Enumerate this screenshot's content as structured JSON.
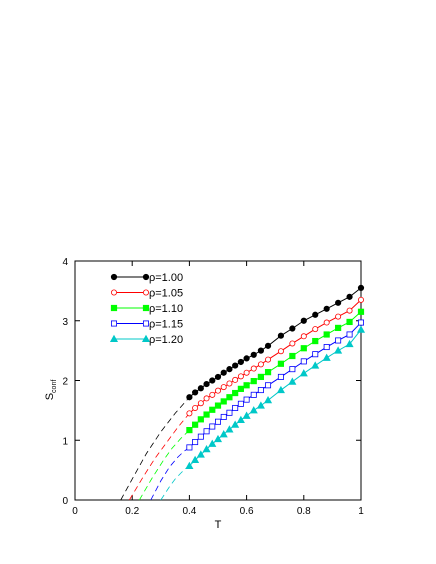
{
  "chart_data": {
    "type": "line",
    "xlabel": "T",
    "ylabel": "S",
    "ylabel_sub": "conf",
    "xlim": [
      0,
      1
    ],
    "ylim": [
      0,
      4
    ],
    "xticks": [
      0,
      0.2,
      0.4,
      0.6,
      0.8,
      1
    ],
    "yticks": [
      0,
      1,
      2,
      3,
      4
    ],
    "xtick_labels": [
      "0",
      "0.2",
      "0.4",
      "0.6",
      "0.8",
      "1"
    ],
    "ytick_labels": [
      "0",
      "1",
      "2",
      "3",
      "4"
    ],
    "grid": false,
    "legend_position": "top-left",
    "series": [
      {
        "name": "ρ=1.00",
        "color": "#000000",
        "marker": "filled-circle",
        "x": [
          0.4,
          0.42,
          0.44,
          0.46,
          0.48,
          0.5,
          0.52,
          0.54,
          0.56,
          0.58,
          0.6,
          0.625,
          0.65,
          0.675,
          0.72,
          0.76,
          0.8,
          0.84,
          0.88,
          0.92,
          0.96,
          1.0
        ],
        "y": [
          1.72,
          1.8,
          1.87,
          1.94,
          2.0,
          2.06,
          2.13,
          2.19,
          2.25,
          2.31,
          2.37,
          2.43,
          2.5,
          2.58,
          2.75,
          2.87,
          3.0,
          3.1,
          3.2,
          3.3,
          3.4,
          3.55
        ],
        "extrapolation": {
          "x": [
            0.16,
            0.2,
            0.25,
            0.3,
            0.35,
            0.4
          ],
          "y": [
            0,
            0.35,
            0.78,
            1.14,
            1.45,
            1.72
          ]
        }
      },
      {
        "name": "ρ=1.05",
        "color": "#ff0000",
        "marker": "open-circle",
        "x": [
          0.4,
          0.42,
          0.44,
          0.46,
          0.48,
          0.5,
          0.52,
          0.54,
          0.56,
          0.58,
          0.6,
          0.625,
          0.65,
          0.675,
          0.72,
          0.76,
          0.8,
          0.84,
          0.88,
          0.92,
          0.96,
          1.0
        ],
        "y": [
          1.45,
          1.54,
          1.62,
          1.7,
          1.76,
          1.83,
          1.89,
          1.95,
          2.01,
          2.07,
          2.13,
          2.2,
          2.27,
          2.35,
          2.49,
          2.62,
          2.74,
          2.86,
          2.97,
          3.07,
          3.17,
          3.35
        ],
        "extrapolation": {
          "x": [
            0.19,
            0.24,
            0.28,
            0.32,
            0.36,
            0.4
          ],
          "y": [
            0,
            0.4,
            0.7,
            0.96,
            1.22,
            1.45
          ]
        }
      },
      {
        "name": "ρ=1.10",
        "color": "#00ff00",
        "marker": "filled-square",
        "x": [
          0.4,
          0.42,
          0.44,
          0.46,
          0.48,
          0.5,
          0.52,
          0.54,
          0.56,
          0.58,
          0.6,
          0.625,
          0.65,
          0.675,
          0.72,
          0.76,
          0.8,
          0.84,
          0.88,
          0.92,
          0.96,
          1.0
        ],
        "y": [
          1.17,
          1.26,
          1.35,
          1.43,
          1.51,
          1.58,
          1.65,
          1.72,
          1.79,
          1.86,
          1.92,
          1.99,
          2.06,
          2.14,
          2.28,
          2.41,
          2.54,
          2.66,
          2.77,
          2.88,
          2.98,
          3.15
        ],
        "extrapolation": {
          "x": [
            0.225,
            0.27,
            0.31,
            0.34,
            0.37,
            0.4
          ],
          "y": [
            0,
            0.37,
            0.67,
            0.87,
            1.03,
            1.17
          ]
        }
      },
      {
        "name": "ρ=1.15",
        "color": "#0000ff",
        "marker": "open-square",
        "x": [
          0.4,
          0.42,
          0.44,
          0.46,
          0.48,
          0.5,
          0.52,
          0.54,
          0.56,
          0.58,
          0.6,
          0.625,
          0.65,
          0.675,
          0.72,
          0.76,
          0.8,
          0.84,
          0.88,
          0.92,
          0.96,
          1.0
        ],
        "y": [
          0.88,
          0.97,
          1.06,
          1.15,
          1.23,
          1.31,
          1.39,
          1.46,
          1.54,
          1.61,
          1.68,
          1.76,
          1.84,
          1.92,
          2.06,
          2.19,
          2.32,
          2.44,
          2.56,
          2.67,
          2.77,
          2.97
        ],
        "extrapolation": {
          "x": [
            0.265,
            0.3,
            0.33,
            0.36,
            0.38,
            0.4
          ],
          "y": [
            0,
            0.32,
            0.55,
            0.72,
            0.81,
            0.88
          ]
        }
      },
      {
        "name": "ρ=1.20",
        "color": "#00c8c8",
        "marker": "filled-triangle",
        "x": [
          0.4,
          0.42,
          0.44,
          0.46,
          0.48,
          0.5,
          0.52,
          0.54,
          0.56,
          0.58,
          0.6,
          0.625,
          0.65,
          0.675,
          0.72,
          0.76,
          0.8,
          0.84,
          0.88,
          0.92,
          0.96,
          1.0
        ],
        "y": [
          0.57,
          0.67,
          0.76,
          0.85,
          0.94,
          1.02,
          1.1,
          1.18,
          1.26,
          1.34,
          1.41,
          1.5,
          1.58,
          1.67,
          1.84,
          1.98,
          2.12,
          2.25,
          2.38,
          2.5,
          2.61,
          2.85
        ],
        "extrapolation": {
          "x": [
            0.3,
            0.33,
            0.35,
            0.37,
            0.385,
            0.4
          ],
          "y": [
            0,
            0.22,
            0.35,
            0.45,
            0.52,
            0.57
          ]
        }
      }
    ]
  }
}
